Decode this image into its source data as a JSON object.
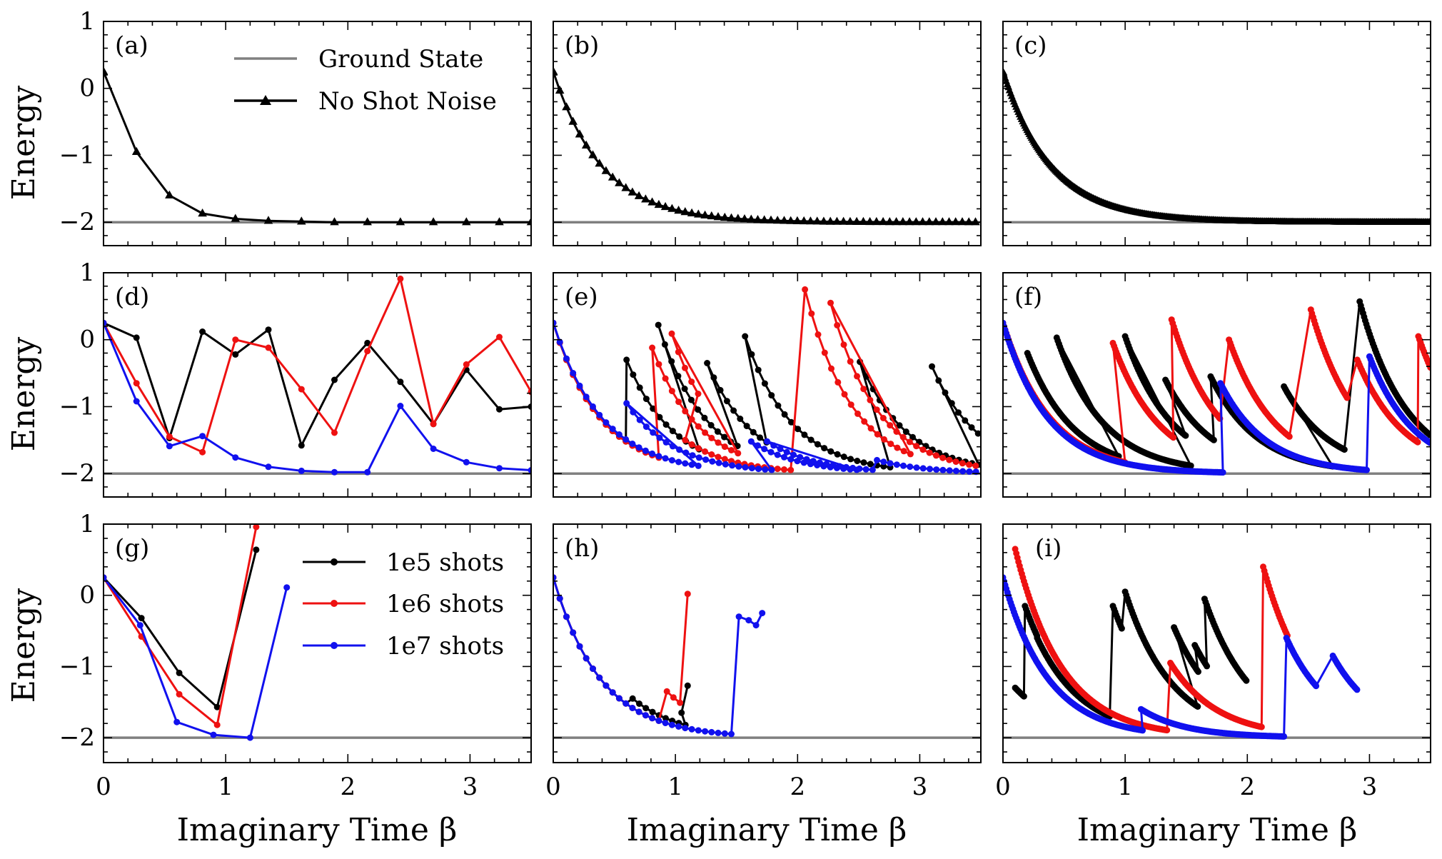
{
  "figure": {
    "ylabel": "Energy",
    "xlabel": "Imaginary Time β",
    "xlim": [
      0,
      3.5
    ],
    "ylim": [
      -2.35,
      1.0
    ],
    "xticks": [
      0,
      1,
      2,
      3
    ],
    "yticks": [
      -2,
      -1,
      0,
      1
    ],
    "ground_state": -2.0
  },
  "legend_top": [
    {
      "label": "Ground State",
      "color": "#808080",
      "marker": "none"
    },
    {
      "label": "No Shot Noise",
      "color": "#000000",
      "marker": "triangle"
    }
  ],
  "legend_shots": [
    {
      "label": "1e5 shots",
      "color": "#000000"
    },
    {
      "label": "1e6 shots",
      "color": "#ee1111"
    },
    {
      "label": "1e7 shots",
      "color": "#1111ee"
    }
  ],
  "chart_data": [
    {
      "id": "a",
      "label": "(a)",
      "type": "line",
      "series": [
        {
          "name": "No Shot Noise",
          "color": "#000000",
          "marker": "triangle",
          "x": [
            0,
            0.27,
            0.54,
            0.81,
            1.08,
            1.35,
            1.62,
            1.89,
            2.16,
            2.43,
            2.7,
            2.97,
            3.24,
            3.5
          ],
          "y": [
            0.25,
            -0.95,
            -1.6,
            -1.87,
            -1.95,
            -1.98,
            -1.99,
            -2.0,
            -2.0,
            -2.0,
            -2.0,
            -2.0,
            -2.0,
            -2.0
          ]
        }
      ]
    },
    {
      "id": "b",
      "label": "(b)",
      "type": "line",
      "generated": "decay",
      "dt": 0.054,
      "rate": 2.5,
      "marker": "triangle",
      "series": [
        {
          "name": "No Shot Noise",
          "color": "#000000",
          "marker": "triangle"
        }
      ]
    },
    {
      "id": "c",
      "label": "(c)",
      "type": "line",
      "generated": "decay",
      "dt": 0.009,
      "rate": 2.5,
      "marker": "triangle",
      "series": [
        {
          "name": "No Shot Noise",
          "color": "#000000",
          "marker": "triangle"
        }
      ]
    },
    {
      "id": "d",
      "label": "(d)",
      "type": "line",
      "series": [
        {
          "name": "1e5 shots",
          "color": "#000000",
          "x": [
            0,
            0.27,
            0.54,
            0.81,
            1.08,
            1.35,
            1.62,
            1.89,
            2.16,
            2.43,
            2.7,
            2.97,
            3.24,
            3.5
          ],
          "y": [
            0.25,
            0.03,
            -1.47,
            0.12,
            -0.22,
            0.15,
            -1.58,
            -0.6,
            -0.05,
            -0.63,
            -1.26,
            -0.45,
            -1.04,
            -1.0
          ]
        },
        {
          "name": "1e6 shots",
          "color": "#ee1111",
          "x": [
            0,
            0.27,
            0.54,
            0.81,
            1.08,
            1.35,
            1.62,
            1.89,
            2.16,
            2.43,
            2.7,
            2.97,
            3.24,
            3.5
          ],
          "y": [
            0.25,
            -0.65,
            -1.45,
            -1.68,
            0.0,
            -0.12,
            -0.74,
            -1.39,
            -0.17,
            0.91,
            -1.26,
            -0.37,
            0.04,
            -0.78
          ]
        },
        {
          "name": "1e7 shots",
          "color": "#1111ee",
          "x": [
            0,
            0.27,
            0.54,
            0.81,
            1.08,
            1.35,
            1.62,
            1.89,
            2.16,
            2.43,
            2.7,
            2.97,
            3.24,
            3.5
          ],
          "y": [
            0.25,
            -0.92,
            -1.59,
            -1.44,
            -1.76,
            -1.9,
            -1.96,
            -1.98,
            -1.98,
            -0.99,
            -1.63,
            -1.83,
            -1.92,
            -1.95
          ]
        }
      ]
    },
    {
      "id": "e",
      "label": "(e)",
      "type": "line",
      "dt": 0.054,
      "series": [
        {
          "name": "1e5 shots",
          "color": "#000000",
          "rate": 2.6,
          "segments": [
            [
              0,
              0.25,
              0.6
            ],
            [
              0.6,
              -0.3,
              0.6
            ],
            [
              0.86,
              0.22,
              0.7
            ],
            [
              1.26,
              -0.35,
              0.5
            ],
            [
              1.57,
              0.05,
              1.2
            ],
            [
              2.51,
              -0.33,
              1.1
            ],
            [
              3.1,
              -0.4,
              0.5
            ]
          ]
        },
        {
          "name": "1e6 shots",
          "color": "#ee1111",
          "rate": 2.6,
          "segments": [
            [
              0,
              0.25,
              0.9
            ],
            [
              0.81,
              -0.12,
              0.75
            ],
            [
              0.97,
              0.09,
              0.25
            ],
            [
              1.08,
              -1.5,
              0.9
            ],
            [
              2.06,
              0.75,
              0.9
            ],
            [
              2.27,
              0.55,
              1.3
            ]
          ]
        },
        {
          "name": "1e7 shots",
          "color": "#1111ee",
          "rate": 2.5,
          "segments": [
            [
              0,
              0.25,
              1.2
            ],
            [
              0.6,
              -0.95,
              1.2
            ],
            [
              1.62,
              -1.52,
              0.9
            ],
            [
              1.75,
              -1.52,
              0.9
            ],
            [
              2.65,
              -1.8,
              1.2
            ]
          ]
        }
      ]
    },
    {
      "id": "f",
      "label": "(f)",
      "type": "line",
      "dt": 0.009,
      "series": [
        {
          "name": "1e5 shots",
          "color": "#000000",
          "rate": 2.6,
          "segments": [
            [
              0.2,
              -0.2,
              0.75
            ],
            [
              0.44,
              0.03,
              1.1
            ],
            [
              1.0,
              0.05,
              0.5
            ],
            [
              1.33,
              -0.6,
              0.4
            ],
            [
              1.7,
              -0.55,
              1.0
            ],
            [
              2.3,
              -0.7,
              0.5
            ],
            [
              2.92,
              0.57,
              0.6
            ]
          ]
        },
        {
          "name": "1e6 shots",
          "color": "#ee1111",
          "rate": 2.6,
          "segments": [
            [
              0,
              0.25,
              1.0
            ],
            [
              0.9,
              -0.05,
              0.5
            ],
            [
              1.38,
              0.3,
              0.4
            ],
            [
              1.85,
              0.0,
              0.5
            ],
            [
              2.52,
              0.45,
              0.3
            ],
            [
              2.9,
              -0.3,
              0.5
            ],
            [
              3.4,
              0.05,
              0.15
            ]
          ]
        },
        {
          "name": "1e7 shots",
          "color": "#1111ee",
          "rate": 2.7,
          "segments": [
            [
              0,
              0.25,
              1.8
            ],
            [
              1.78,
              -0.65,
              1.2
            ],
            [
              3.0,
              -0.25,
              0.5
            ]
          ]
        }
      ]
    },
    {
      "id": "g",
      "label": "(g)",
      "type": "line",
      "series": [
        {
          "name": "1e5 shots",
          "color": "#000000",
          "x": [
            0,
            0.31,
            0.62,
            0.93,
            1.25
          ],
          "y": [
            0.25,
            -0.32,
            -1.09,
            -1.57,
            0.64
          ]
        },
        {
          "name": "1e6 shots",
          "color": "#ee1111",
          "x": [
            0,
            0.31,
            0.62,
            0.93,
            1.25
          ],
          "y": [
            0.25,
            -0.58,
            -1.39,
            -1.82,
            0.96
          ]
        },
        {
          "name": "1e7 shots",
          "color": "#1111ee",
          "x": [
            0,
            0.3,
            0.6,
            0.9,
            1.2,
            1.5
          ],
          "y": [
            0.25,
            -0.42,
            -1.78,
            -1.96,
            -2.0,
            0.11
          ]
        }
      ]
    },
    {
      "id": "h",
      "label": "(h)",
      "type": "line",
      "dt": 0.054,
      "series": [
        {
          "name": "1e5 shots",
          "color": "#000000",
          "rate": 2.6,
          "segments": [
            [
              0,
              0.25,
              0.63
            ],
            [
              0.65,
              -1.45,
              0.45
            ]
          ],
          "tail": [
            [
              1.05,
              -1.65
            ],
            [
              1.1,
              -1.27
            ]
          ]
        },
        {
          "name": "1e6 shots",
          "color": "#ee1111",
          "rate": 2.6,
          "segments": [
            [
              0,
              0.25,
              0.9
            ],
            [
              0.93,
              -1.35,
              0.15
            ]
          ],
          "tail": [
            [
              1.1,
              0.02
            ]
          ]
        },
        {
          "name": "1e7 shots",
          "color": "#1111ee",
          "rate": 2.6,
          "segments": [
            [
              0,
              0.25,
              1.5
            ]
          ],
          "tail": [
            [
              1.52,
              -0.3
            ],
            [
              1.6,
              -0.35
            ],
            [
              1.66,
              -0.42
            ],
            [
              1.71,
              -0.25
            ]
          ]
        }
      ]
    },
    {
      "id": "i",
      "label": "(i)",
      "type": "line",
      "dt": 0.009,
      "series": [
        {
          "name": "1e5 shots",
          "color": "#000000",
          "rate": 2.6,
          "segments": [
            [
              0.1,
              -1.3,
              0.08
            ],
            [
              0.18,
              -0.15,
              0.1
            ],
            [
              0.28,
              -0.6,
              0.6
            ],
            [
              0.9,
              -0.15,
              0.08
            ],
            [
              1.0,
              0.05,
              0.6
            ],
            [
              1.4,
              -0.45,
              0.2
            ],
            [
              1.57,
              -0.7,
              0.1
            ],
            [
              1.65,
              -0.05,
              0.35
            ]
          ]
        },
        {
          "name": "1e6 shots",
          "color": "#ee1111",
          "rate": 2.6,
          "segments": [
            [
              0.1,
              0.65,
              1.25
            ],
            [
              1.37,
              -0.95,
              0.75
            ],
            [
              2.13,
              0.4,
              0.2
            ]
          ]
        },
        {
          "name": "1e7 shots",
          "color": "#1111ee",
          "rate": 2.7,
          "segments": [
            [
              0,
              0.25,
              1.15
            ],
            [
              1.13,
              -1.6,
              1.17
            ],
            [
              2.32,
              -0.6,
              0.25
            ],
            [
              2.7,
              -0.85,
              0.2
            ]
          ]
        }
      ]
    }
  ]
}
